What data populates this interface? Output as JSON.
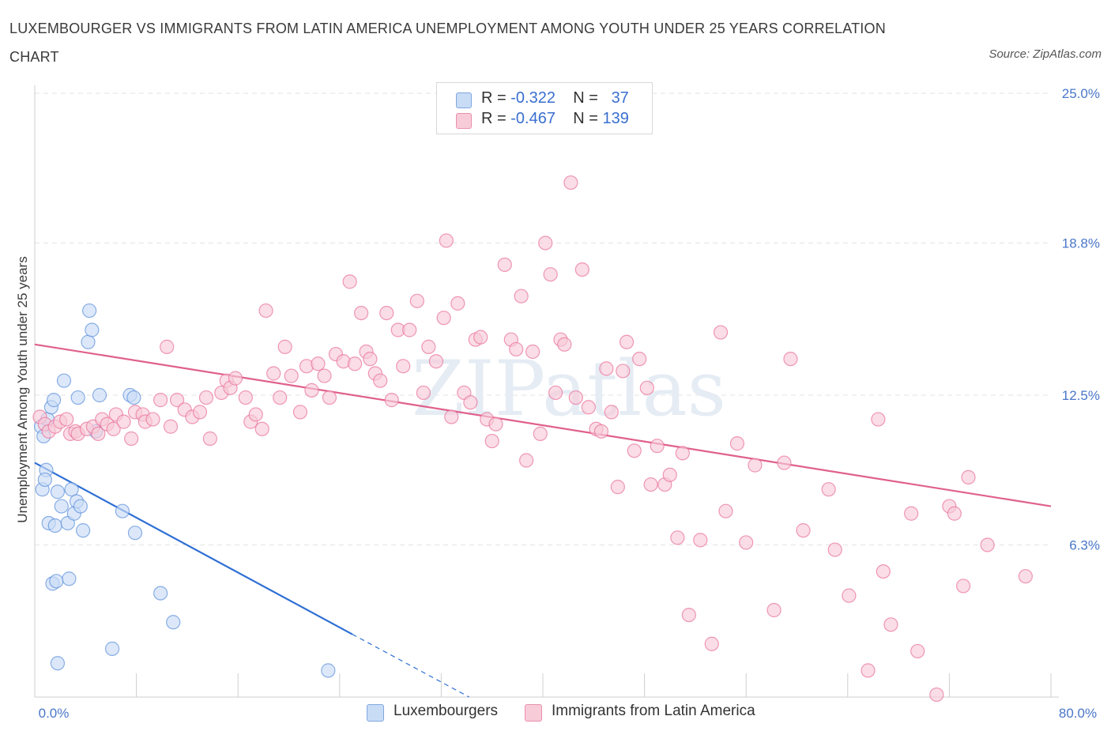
{
  "title": "LUXEMBOURGER VS IMMIGRANTS FROM LATIN AMERICA UNEMPLOYMENT AMONG YOUTH UNDER 25 YEARS CORRELATION CHART",
  "source": "Source: ZipAtlas.com",
  "watermark": "ZIPatlas",
  "legend": {
    "rows": [
      {
        "r_label": "R =",
        "r_value": "-0.322",
        "n_label": "N =",
        "n_value": "37",
        "color": "#aecbf2"
      },
      {
        "r_label": "R =",
        "r_value": "-0.467",
        "n_label": "N =",
        "n_value": "139",
        "color": "#f7bfcf"
      }
    ]
  },
  "bottom_legend": [
    {
      "label": "Luxembourgers",
      "color": "#aecbf2"
    },
    {
      "label": "Immigrants from Latin America",
      "color": "#f7bfcf"
    }
  ],
  "chart_data": {
    "type": "scatter",
    "xlabel": "",
    "ylabel": "Unemployment Among Youth under 25 years",
    "xlim": [
      0,
      80
    ],
    "ylim": [
      0,
      25
    ],
    "x_tick_labels": [
      {
        "value": 0,
        "label": "0.0%"
      },
      {
        "value": 80,
        "label": "80.0%"
      }
    ],
    "y_tick_labels": [
      {
        "value": 6.3,
        "label": "6.3%"
      },
      {
        "value": 12.5,
        "label": "12.5%"
      },
      {
        "value": 18.8,
        "label": "18.8%"
      },
      {
        "value": 25.0,
        "label": "25.0%"
      }
    ],
    "series": [
      {
        "name": "Luxembourgers",
        "color": "#5b8fdc",
        "fill": "#c9dcf6",
        "trend": {
          "x1": 0,
          "y1": 9.7,
          "x2": 25,
          "y2": 2.6,
          "dash_to_x": 34.2,
          "dash_to_y": 0.0,
          "color": "#2e6fd4"
        },
        "points": [
          [
            0.5,
            11.2
          ],
          [
            0.7,
            10.8
          ],
          [
            1.0,
            11.5
          ],
          [
            0.9,
            9.4
          ],
          [
            0.6,
            8.6
          ],
          [
            0.8,
            9.0
          ],
          [
            1.1,
            7.2
          ],
          [
            1.6,
            7.1
          ],
          [
            1.8,
            8.5
          ],
          [
            2.1,
            7.9
          ],
          [
            2.6,
            7.2
          ],
          [
            2.9,
            8.6
          ],
          [
            3.1,
            7.6
          ],
          [
            3.3,
            8.1
          ],
          [
            3.6,
            7.9
          ],
          [
            3.8,
            6.9
          ],
          [
            1.3,
            12.0
          ],
          [
            1.5,
            12.3
          ],
          [
            2.3,
            13.1
          ],
          [
            3.4,
            12.4
          ],
          [
            4.2,
            14.7
          ],
          [
            4.5,
            15.2
          ],
          [
            4.3,
            16.0
          ],
          [
            5.1,
            12.5
          ],
          [
            7.5,
            12.5
          ],
          [
            7.8,
            12.4
          ],
          [
            6.9,
            7.7
          ],
          [
            7.9,
            6.8
          ],
          [
            1.4,
            4.7
          ],
          [
            1.7,
            4.8
          ],
          [
            2.7,
            4.9
          ],
          [
            9.9,
            4.3
          ],
          [
            10.9,
            3.1
          ],
          [
            6.1,
            2.0
          ],
          [
            1.8,
            1.4
          ],
          [
            23.1,
            1.1
          ],
          [
            4.8,
            11.0
          ]
        ]
      },
      {
        "name": "Immigrants from Latin America",
        "color": "#e86f98",
        "fill": "#f8cbd8",
        "trend": {
          "x1": 0,
          "y1": 14.6,
          "x2": 80,
          "y2": 7.9,
          "color": "#e0608b"
        },
        "points": [
          [
            0.4,
            11.6
          ],
          [
            0.8,
            11.3
          ],
          [
            1.1,
            11.0
          ],
          [
            1.6,
            11.2
          ],
          [
            2.0,
            11.4
          ],
          [
            2.5,
            11.5
          ],
          [
            2.8,
            10.9
          ],
          [
            3.2,
            11.0
          ],
          [
            3.4,
            10.9
          ],
          [
            4.1,
            11.1
          ],
          [
            4.6,
            11.2
          ],
          [
            5.0,
            10.9
          ],
          [
            5.3,
            11.5
          ],
          [
            5.7,
            11.3
          ],
          [
            6.2,
            11.1
          ],
          [
            6.4,
            11.7
          ],
          [
            7.0,
            11.4
          ],
          [
            7.6,
            10.7
          ],
          [
            7.9,
            11.8
          ],
          [
            8.5,
            11.7
          ],
          [
            8.7,
            11.4
          ],
          [
            9.3,
            11.5
          ],
          [
            9.9,
            12.3
          ],
          [
            10.4,
            14.5
          ],
          [
            10.7,
            11.2
          ],
          [
            11.2,
            12.3
          ],
          [
            11.8,
            11.9
          ],
          [
            12.4,
            11.6
          ],
          [
            13.0,
            11.8
          ],
          [
            13.5,
            12.4
          ],
          [
            13.8,
            10.7
          ],
          [
            14.7,
            12.6
          ],
          [
            15.1,
            13.1
          ],
          [
            15.4,
            12.8
          ],
          [
            15.8,
            13.2
          ],
          [
            16.6,
            12.4
          ],
          [
            17.0,
            11.4
          ],
          [
            17.4,
            11.7
          ],
          [
            17.9,
            11.1
          ],
          [
            18.2,
            16.0
          ],
          [
            18.8,
            13.4
          ],
          [
            19.3,
            12.4
          ],
          [
            19.7,
            14.5
          ],
          [
            20.2,
            13.3
          ],
          [
            20.9,
            11.8
          ],
          [
            21.4,
            13.7
          ],
          [
            21.8,
            12.7
          ],
          [
            22.3,
            13.8
          ],
          [
            22.8,
            13.3
          ],
          [
            23.2,
            12.4
          ],
          [
            23.7,
            14.2
          ],
          [
            24.3,
            13.9
          ],
          [
            24.8,
            17.2
          ],
          [
            25.2,
            13.8
          ],
          [
            25.7,
            15.9
          ],
          [
            26.1,
            14.3
          ],
          [
            26.4,
            14.0
          ],
          [
            26.8,
            13.4
          ],
          [
            27.2,
            13.1
          ],
          [
            27.7,
            15.9
          ],
          [
            28.1,
            12.3
          ],
          [
            28.6,
            15.2
          ],
          [
            29.0,
            13.7
          ],
          [
            29.5,
            15.2
          ],
          [
            30.1,
            16.4
          ],
          [
            30.6,
            12.6
          ],
          [
            31.0,
            14.5
          ],
          [
            31.6,
            13.9
          ],
          [
            32.2,
            15.7
          ],
          [
            32.4,
            18.9
          ],
          [
            32.8,
            11.6
          ],
          [
            33.3,
            16.3
          ],
          [
            33.8,
            12.6
          ],
          [
            34.3,
            12.2
          ],
          [
            34.7,
            14.8
          ],
          [
            35.1,
            14.9
          ],
          [
            35.6,
            11.5
          ],
          [
            36.0,
            10.6
          ],
          [
            36.3,
            11.3
          ],
          [
            37.0,
            17.9
          ],
          [
            37.5,
            14.8
          ],
          [
            37.9,
            14.4
          ],
          [
            38.3,
            16.6
          ],
          [
            38.7,
            9.8
          ],
          [
            39.2,
            14.3
          ],
          [
            39.8,
            10.9
          ],
          [
            40.2,
            18.8
          ],
          [
            40.6,
            17.5
          ],
          [
            41.0,
            12.6
          ],
          [
            41.4,
            14.8
          ],
          [
            41.7,
            14.6
          ],
          [
            42.2,
            21.3
          ],
          [
            42.6,
            12.4
          ],
          [
            43.1,
            17.7
          ],
          [
            43.6,
            12.0
          ],
          [
            44.2,
            11.1
          ],
          [
            44.6,
            11.0
          ],
          [
            45.0,
            13.6
          ],
          [
            45.4,
            11.8
          ],
          [
            45.9,
            8.7
          ],
          [
            46.3,
            13.5
          ],
          [
            46.6,
            14.7
          ],
          [
            47.2,
            10.2
          ],
          [
            47.6,
            14.0
          ],
          [
            48.2,
            12.8
          ],
          [
            48.5,
            8.8
          ],
          [
            49.0,
            10.4
          ],
          [
            49.6,
            8.8
          ],
          [
            50.0,
            9.2
          ],
          [
            50.6,
            6.6
          ],
          [
            51.0,
            10.1
          ],
          [
            51.5,
            3.4
          ],
          [
            52.4,
            6.5
          ],
          [
            53.3,
            2.2
          ],
          [
            54.0,
            15.1
          ],
          [
            54.4,
            7.7
          ],
          [
            55.3,
            10.5
          ],
          [
            56.0,
            6.4
          ],
          [
            56.7,
            9.6
          ],
          [
            58.2,
            3.6
          ],
          [
            59.0,
            9.7
          ],
          [
            59.5,
            14.0
          ],
          [
            60.5,
            6.9
          ],
          [
            62.5,
            8.6
          ],
          [
            63.0,
            6.1
          ],
          [
            64.1,
            4.2
          ],
          [
            65.6,
            1.1
          ],
          [
            66.4,
            11.5
          ],
          [
            66.8,
            5.2
          ],
          [
            67.4,
            3.0
          ],
          [
            69.0,
            7.6
          ],
          [
            69.5,
            1.9
          ],
          [
            71.0,
            0.1
          ],
          [
            72.0,
            7.9
          ],
          [
            72.4,
            7.6
          ],
          [
            73.5,
            9.1
          ],
          [
            75.0,
            6.3
          ],
          [
            78.0,
            5.0
          ],
          [
            73.1,
            4.6
          ]
        ]
      }
    ]
  }
}
